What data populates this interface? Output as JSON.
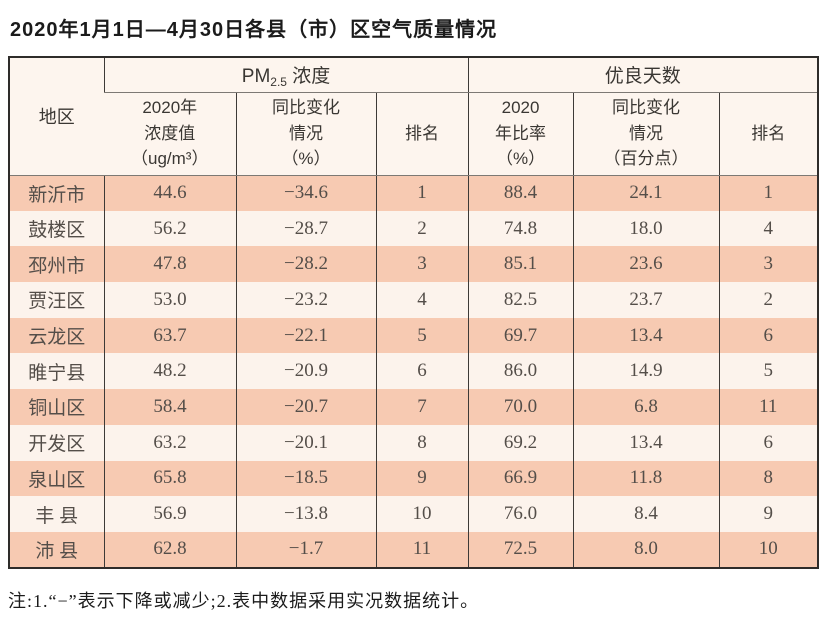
{
  "page": {
    "title": "2020年1月1日—4月30日各县（市）区空气质量情况",
    "footnote": "注:1.“−”表示下降或减少;2.表中数据采用实况数据统计。"
  },
  "colors": {
    "stripe_salmon": "#f7cab2",
    "stripe_light": "#fcf3ec",
    "header_bg": "#fdf5ee",
    "border_dark": "#2e2c2a",
    "border_inner": "#3d3a37",
    "border_header_line": "#7d7974",
    "body_text": "#544e49"
  },
  "table": {
    "corner_header": "地区",
    "group_headers": {
      "pm25_prefix": "PM",
      "pm25_sub": "2.5",
      "pm25_suffix": " 浓度",
      "good_days": "优良天数"
    },
    "sub_headers": {
      "pm_value": "2020年\n浓度值\n（ug/m³）",
      "pm_change": "同比变化\n情况\n（%）",
      "pm_rank": "排名",
      "gd_ratio": "2020\n年比率\n（%）",
      "gd_change": "同比变化\n情况\n（百分点）",
      "gd_rank": "排名"
    },
    "rows": [
      {
        "region": "新沂市",
        "pm_value": "44.6",
        "pm_change": "−34.6",
        "pm_rank": "1",
        "gd_ratio": "88.4",
        "gd_change": "24.1",
        "gd_rank": "1"
      },
      {
        "region": "鼓楼区",
        "pm_value": "56.2",
        "pm_change": "−28.7",
        "pm_rank": "2",
        "gd_ratio": "74.8",
        "gd_change": "18.0",
        "gd_rank": "4"
      },
      {
        "region": "邳州市",
        "pm_value": "47.8",
        "pm_change": "−28.2",
        "pm_rank": "3",
        "gd_ratio": "85.1",
        "gd_change": "23.6",
        "gd_rank": "3"
      },
      {
        "region": "贾汪区",
        "pm_value": "53.0",
        "pm_change": "−23.2",
        "pm_rank": "4",
        "gd_ratio": "82.5",
        "gd_change": "23.7",
        "gd_rank": "2"
      },
      {
        "region": "云龙区",
        "pm_value": "63.7",
        "pm_change": "−22.1",
        "pm_rank": "5",
        "gd_ratio": "69.7",
        "gd_change": "13.4",
        "gd_rank": "6"
      },
      {
        "region": "睢宁县",
        "pm_value": "48.2",
        "pm_change": "−20.9",
        "pm_rank": "6",
        "gd_ratio": "86.0",
        "gd_change": "14.9",
        "gd_rank": "5"
      },
      {
        "region": "铜山区",
        "pm_value": "58.4",
        "pm_change": "−20.7",
        "pm_rank": "7",
        "gd_ratio": "70.0",
        "gd_change": "6.8",
        "gd_rank": "11"
      },
      {
        "region": "开发区",
        "pm_value": "63.2",
        "pm_change": "−20.1",
        "pm_rank": "8",
        "gd_ratio": "69.2",
        "gd_change": "13.4",
        "gd_rank": "6"
      },
      {
        "region": "泉山区",
        "pm_value": "65.8",
        "pm_change": "−18.5",
        "pm_rank": "9",
        "gd_ratio": "66.9",
        "gd_change": "11.8",
        "gd_rank": "8"
      },
      {
        "region": "丰 县",
        "pm_value": "56.9",
        "pm_change": "−13.8",
        "pm_rank": "10",
        "gd_ratio": "76.0",
        "gd_change": "8.4",
        "gd_rank": "9"
      },
      {
        "region": "沛 县",
        "pm_value": "62.8",
        "pm_change": "−1.7",
        "pm_rank": "11",
        "gd_ratio": "72.5",
        "gd_change": "8.0",
        "gd_rank": "10"
      }
    ]
  }
}
